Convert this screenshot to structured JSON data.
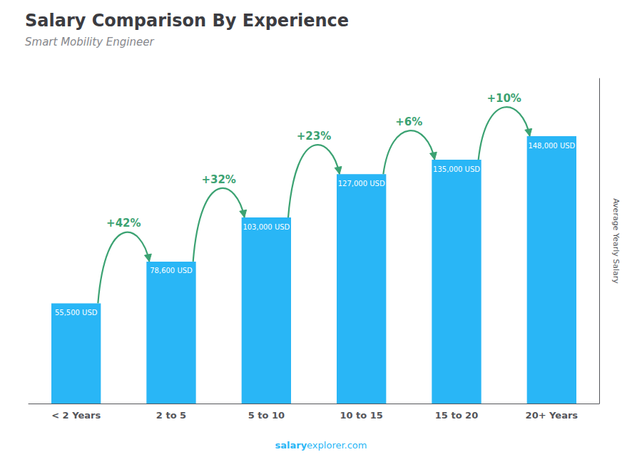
{
  "chart_data": {
    "type": "bar",
    "title": "Salary Comparison By Experience",
    "subtitle": "Smart Mobility Engineer",
    "categories": [
      "< 2 Years",
      "2 to 5",
      "5 to 10",
      "10 to 15",
      "15 to 20",
      "20+ Years"
    ],
    "values": [
      55500,
      78600,
      103000,
      127000,
      135000,
      148000
    ],
    "value_labels": [
      "55,500 USD",
      "78,600 USD",
      "103,000 USD",
      "127,000 USD",
      "135,000 USD",
      "148,000 USD"
    ],
    "data_labels": true,
    "color": "#29b6f6",
    "ylim": [
      0,
      180000
    ],
    "yticks": [],
    "tick_labels": "x",
    "grid": false,
    "y_label": "Average Yearly Salary",
    "annotations": [
      {
        "text": "+42%",
        "from": "< 2 Years",
        "to": "2 to 5"
      },
      {
        "text": "+32%",
        "from": "2 to 5",
        "to": "5 to 10"
      },
      {
        "text": "+23%",
        "from": "5 to 10",
        "to": "10 to 15"
      },
      {
        "text": "+6%",
        "from": "10 to 15",
        "to": "15 to 20"
      },
      {
        "text": "+10%",
        "from": "15 to 20",
        "to": "20+ Years"
      }
    ],
    "footer": [
      "salary",
      "explorer.com"
    ]
  }
}
